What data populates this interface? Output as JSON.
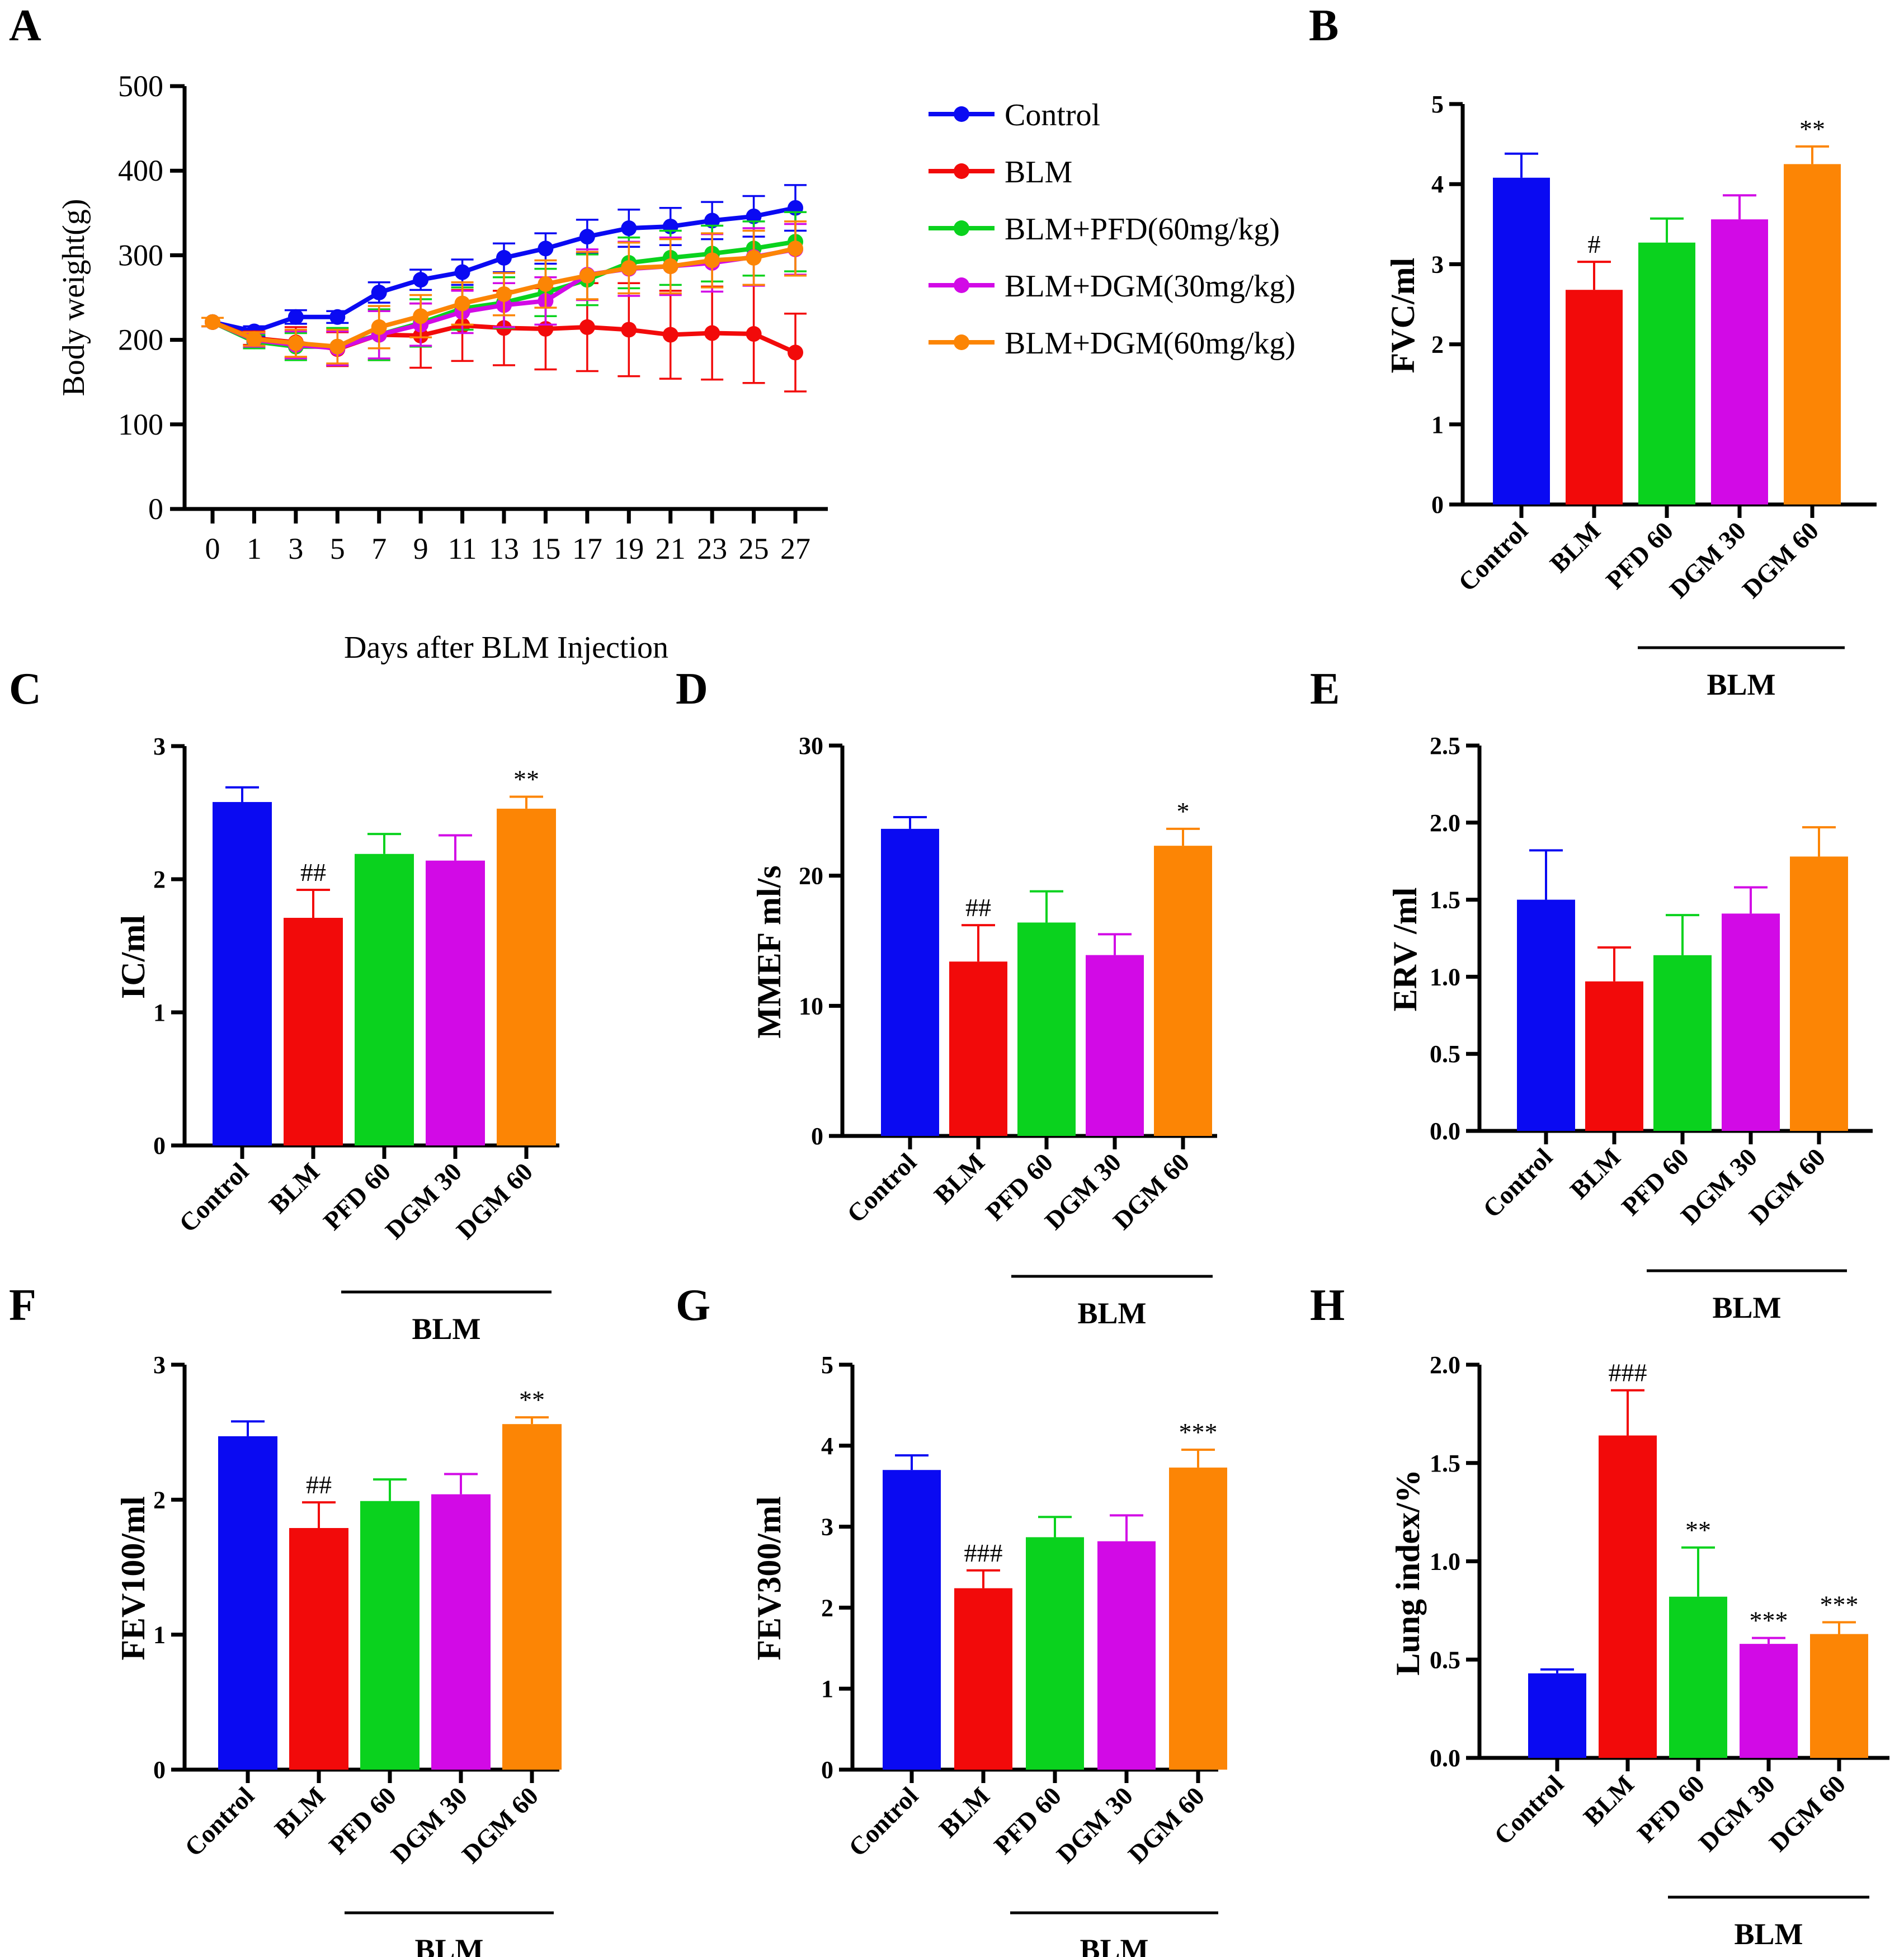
{
  "figure": {
    "colors": {
      "Control": "#0a0af2",
      "BLM": "#f20a0a",
      "PFD": "#0ad21e",
      "DGM30": "#d20ae6",
      "DGM60": "#fc8505"
    }
  },
  "chart_data": [
    {
      "id": "A",
      "panel_label": "A",
      "type": "line",
      "xlabel": "Days after BLM Injection",
      "ylabel": "Body weight(g)",
      "ylim": [
        0,
        500
      ],
      "yticks": [
        "0",
        "100",
        "200",
        "300",
        "400",
        "500"
      ],
      "x": [
        "0",
        "1",
        "3",
        "5",
        "7",
        "9",
        "11",
        "13",
        "15",
        "17",
        "19",
        "21",
        "23",
        "25",
        "27"
      ],
      "series": [
        {
          "name": "Control",
          "color_key": "Control",
          "values": [
            221,
            210,
            227,
            227,
            256,
            271,
            280,
            297,
            308,
            322,
            332,
            334,
            341,
            346,
            356
          ],
          "err": [
            5,
            6,
            8,
            7,
            12,
            12,
            15,
            17,
            18,
            20,
            22,
            22,
            22,
            24,
            27
          ]
        },
        {
          "name": "BLM",
          "color_key": "BLM",
          "values": [
            221,
            202,
            197,
            189,
            206,
            205,
            217,
            214,
            213,
            215,
            212,
            206,
            208,
            207,
            185
          ],
          "err": [
            5,
            8,
            18,
            20,
            30,
            38,
            42,
            44,
            48,
            52,
            55,
            52,
            55,
            58,
            46
          ]
        },
        {
          "name": "BLM+PFD(60mg/kg)",
          "color_key": "PFD",
          "values": [
            221,
            198,
            192,
            192,
            206,
            220,
            237,
            244,
            256,
            271,
            291,
            297,
            302,
            308,
            316
          ],
          "err": [
            5,
            8,
            16,
            22,
            30,
            28,
            25,
            30,
            28,
            30,
            30,
            32,
            33,
            32,
            35
          ]
        },
        {
          "name": "BLM+DGM(30mg/kg)",
          "color_key": "DGM30",
          "values": [
            221,
            200,
            194,
            190,
            206,
            218,
            233,
            241,
            246,
            277,
            284,
            287,
            291,
            298,
            307
          ],
          "err": [
            5,
            8,
            16,
            20,
            28,
            25,
            25,
            26,
            28,
            30,
            32,
            34,
            34,
            34,
            30
          ]
        },
        {
          "name": "BLM+DGM(60mg/kg)",
          "color_key": "DGM60",
          "values": [
            221,
            201,
            196,
            192,
            215,
            228,
            243,
            254,
            266,
            276,
            285,
            287,
            294,
            297,
            308
          ],
          "err": [
            5,
            8,
            16,
            20,
            25,
            25,
            25,
            25,
            28,
            28,
            30,
            32,
            32,
            32,
            32
          ]
        }
      ]
    },
    {
      "id": "B",
      "panel_label": "B",
      "type": "bar",
      "ylabel": "FVC/ml",
      "ylim": [
        0,
        5
      ],
      "yticks": [
        "0",
        "1",
        "2",
        "3",
        "4",
        "5"
      ],
      "categories": [
        "Control",
        "BLM",
        "PFD 60",
        "DGM 30",
        "DGM 60"
      ],
      "values": [
        4.08,
        2.68,
        3.27,
        3.56,
        4.25
      ],
      "err": [
        0.3,
        0.35,
        0.3,
        0.3,
        0.22
      ],
      "annotations": [
        "",
        "#",
        "",
        "",
        "**"
      ],
      "group_label": "BLM"
    },
    {
      "id": "C",
      "panel_label": "C",
      "type": "bar",
      "ylabel": "IC/ml",
      "ylim": [
        0,
        3
      ],
      "yticks": [
        "0",
        "1",
        "2",
        "3"
      ],
      "categories": [
        "Control",
        "BLM",
        "PFD 60",
        "DGM 30",
        "DGM 60"
      ],
      "values": [
        2.58,
        1.71,
        2.19,
        2.14,
        2.53
      ],
      "err": [
        0.11,
        0.21,
        0.15,
        0.19,
        0.09
      ],
      "annotations": [
        "",
        "##",
        "",
        "",
        "**"
      ],
      "group_label": "BLM"
    },
    {
      "id": "D",
      "panel_label": "D",
      "type": "bar",
      "ylabel": "MMEF ml/s",
      "ylim": [
        0,
        30
      ],
      "yticks": [
        "0",
        "10",
        "20",
        "30"
      ],
      "categories": [
        "Control",
        "BLM",
        "PFD 60",
        "DGM 30",
        "DGM 60"
      ],
      "values": [
        23.6,
        13.4,
        16.4,
        13.9,
        22.3
      ],
      "err": [
        0.9,
        2.8,
        2.4,
        1.6,
        1.3
      ],
      "annotations": [
        "",
        "##",
        "",
        "",
        "*"
      ],
      "group_label": "BLM"
    },
    {
      "id": "E",
      "panel_label": "E",
      "type": "bar",
      "ylabel": "ERV /ml",
      "ylim": [
        0,
        2.5
      ],
      "yticks": [
        "0.0",
        "0.5",
        "1.0",
        "1.5",
        "2.0",
        "2.5"
      ],
      "categories": [
        "Control",
        "BLM",
        "PFD 60",
        "DGM 30",
        "DGM 60"
      ],
      "values": [
        1.5,
        0.97,
        1.14,
        1.41,
        1.78
      ],
      "err": [
        0.32,
        0.22,
        0.26,
        0.17,
        0.19
      ],
      "annotations": [
        "",
        "",
        "",
        "",
        ""
      ],
      "group_label": "BLM"
    },
    {
      "id": "F",
      "panel_label": "F",
      "type": "bar",
      "ylabel": "FEV100/ml",
      "ylim": [
        0,
        3
      ],
      "yticks": [
        "0",
        "1",
        "2",
        "3"
      ],
      "categories": [
        "Control",
        "BLM",
        "PFD 60",
        "DGM 30",
        "DGM 60"
      ],
      "values": [
        2.47,
        1.79,
        1.99,
        2.04,
        2.56
      ],
      "err": [
        0.11,
        0.19,
        0.16,
        0.15,
        0.05
      ],
      "annotations": [
        "",
        "##",
        "",
        "",
        "**"
      ],
      "group_label": "BLM"
    },
    {
      "id": "G",
      "panel_label": "G",
      "type": "bar",
      "ylabel": "FEV300/ml",
      "ylim": [
        0,
        5
      ],
      "yticks": [
        "0",
        "1",
        "2",
        "3",
        "4",
        "5"
      ],
      "categories": [
        "Control",
        "BLM",
        "PFD 60",
        "DGM 30",
        "DGM 60"
      ],
      "values": [
        3.7,
        2.24,
        2.87,
        2.82,
        3.73
      ],
      "err": [
        0.18,
        0.22,
        0.25,
        0.32,
        0.22
      ],
      "annotations": [
        "",
        "###",
        "",
        "",
        "***"
      ],
      "group_label": "BLM"
    },
    {
      "id": "H",
      "panel_label": "H",
      "type": "bar",
      "ylabel": "Lung index/%",
      "ylim": [
        0,
        2
      ],
      "yticks": [
        "0.0",
        "0.5",
        "1.0",
        "1.5",
        "2.0"
      ],
      "categories": [
        "Control",
        "BLM",
        "PFD 60",
        "DGM  30",
        "DGM 60"
      ],
      "values": [
        0.43,
        1.64,
        0.82,
        0.58,
        0.63
      ],
      "err": [
        0.02,
        0.23,
        0.25,
        0.03,
        0.06
      ],
      "annotations": [
        "",
        "###",
        "**",
        "***",
        "***"
      ],
      "group_label": "BLM"
    }
  ]
}
